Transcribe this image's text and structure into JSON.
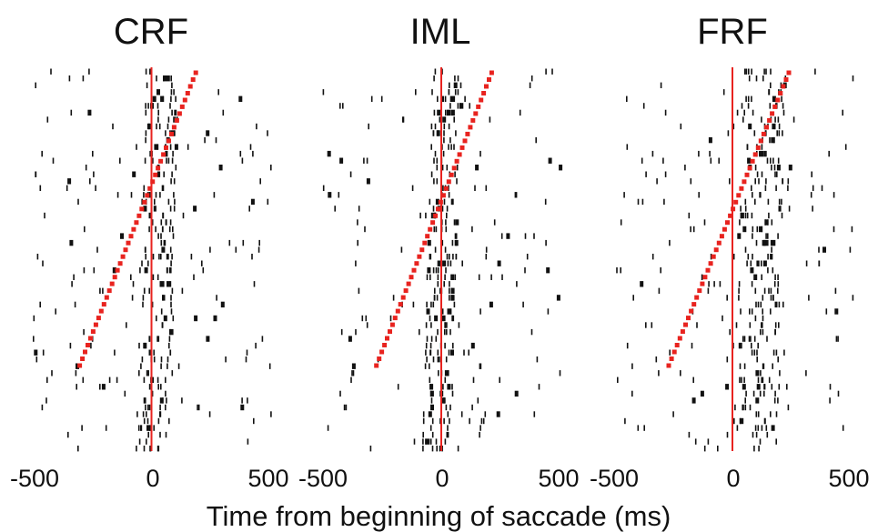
{
  "chart_data": {
    "type": "raster",
    "xlabel": "Time from beginning of saccade (ms)",
    "xlim": [
      -500,
      500
    ],
    "marker_color": "#e8231f",
    "spike_color": "#111111",
    "event_line_color": "#e8231f",
    "panels": [
      {
        "title": "CRF",
        "x_ticks": [
          -500,
          0,
          500
        ],
        "x_tick_labels": [
          "-500",
          "0",
          "500"
        ],
        "alignment_marker_ms_start": -300,
        "alignment_marker_ms_end": 185,
        "late_firing_offset_ms": 40,
        "late_firing_span_ms": 70
      },
      {
        "title": "IML",
        "x_ticks": [
          -500,
          0,
          500
        ],
        "x_tick_labels": [
          "-500",
          "0",
          "500"
        ],
        "alignment_marker_ms_start": -270,
        "alignment_marker_ms_end": 210,
        "late_firing_offset_ms": 20,
        "late_firing_span_ms": 60
      },
      {
        "title": "FRF",
        "x_ticks": [
          -500,
          0,
          500
        ],
        "x_tick_labels": [
          "-500",
          "0",
          "500"
        ],
        "alignment_marker_ms_start": -265,
        "alignment_marker_ms_end": 235,
        "late_firing_offset_ms": 130,
        "late_firing_span_ms": 90
      }
    ]
  }
}
